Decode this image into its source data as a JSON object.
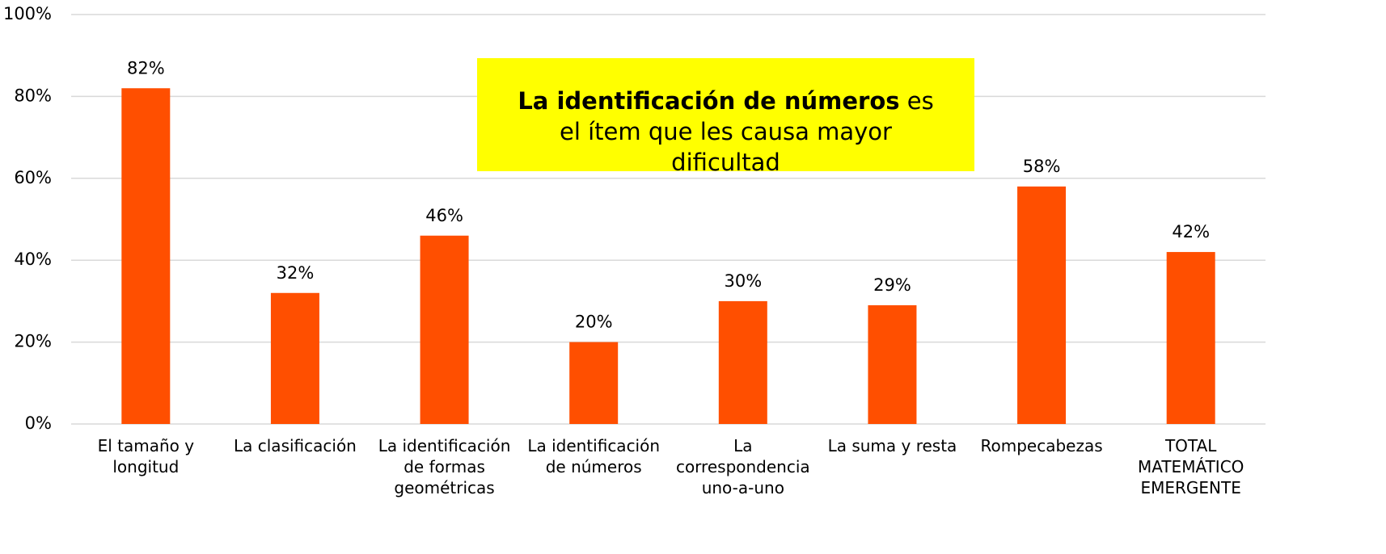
{
  "chart_data": {
    "type": "bar",
    "categories": [
      "El tamaño y longitud",
      "La clasificación",
      "La identificación de formas geométricas",
      "La identificación de números",
      "La correspondencia uno-a-uno",
      "La suma y resta",
      "Rompecabezas",
      "TOTAL MATEMÁTICO EMERGENTE"
    ],
    "values": [
      82,
      32,
      46,
      20,
      30,
      29,
      58,
      42
    ],
    "value_labels": [
      "82%",
      "32%",
      "46%",
      "20%",
      "30%",
      "29%",
      "58%",
      "42%"
    ],
    "color": "#ff4f00",
    "ylim": [
      0,
      100
    ],
    "yticks": [
      {
        "value": 0,
        "label": "0%"
      },
      {
        "value": 20,
        "label": "20%"
      },
      {
        "value": 40,
        "label": "40%"
      },
      {
        "value": 60,
        "label": "60%"
      },
      {
        "value": 80,
        "label": "80%"
      },
      {
        "value": 100,
        "label": "100%"
      }
    ],
    "grid": true,
    "annotation": {
      "bold": "La identificación de números",
      "text": "es el ítem que les causa mayor dificultad",
      "background": "#ffff00"
    }
  }
}
